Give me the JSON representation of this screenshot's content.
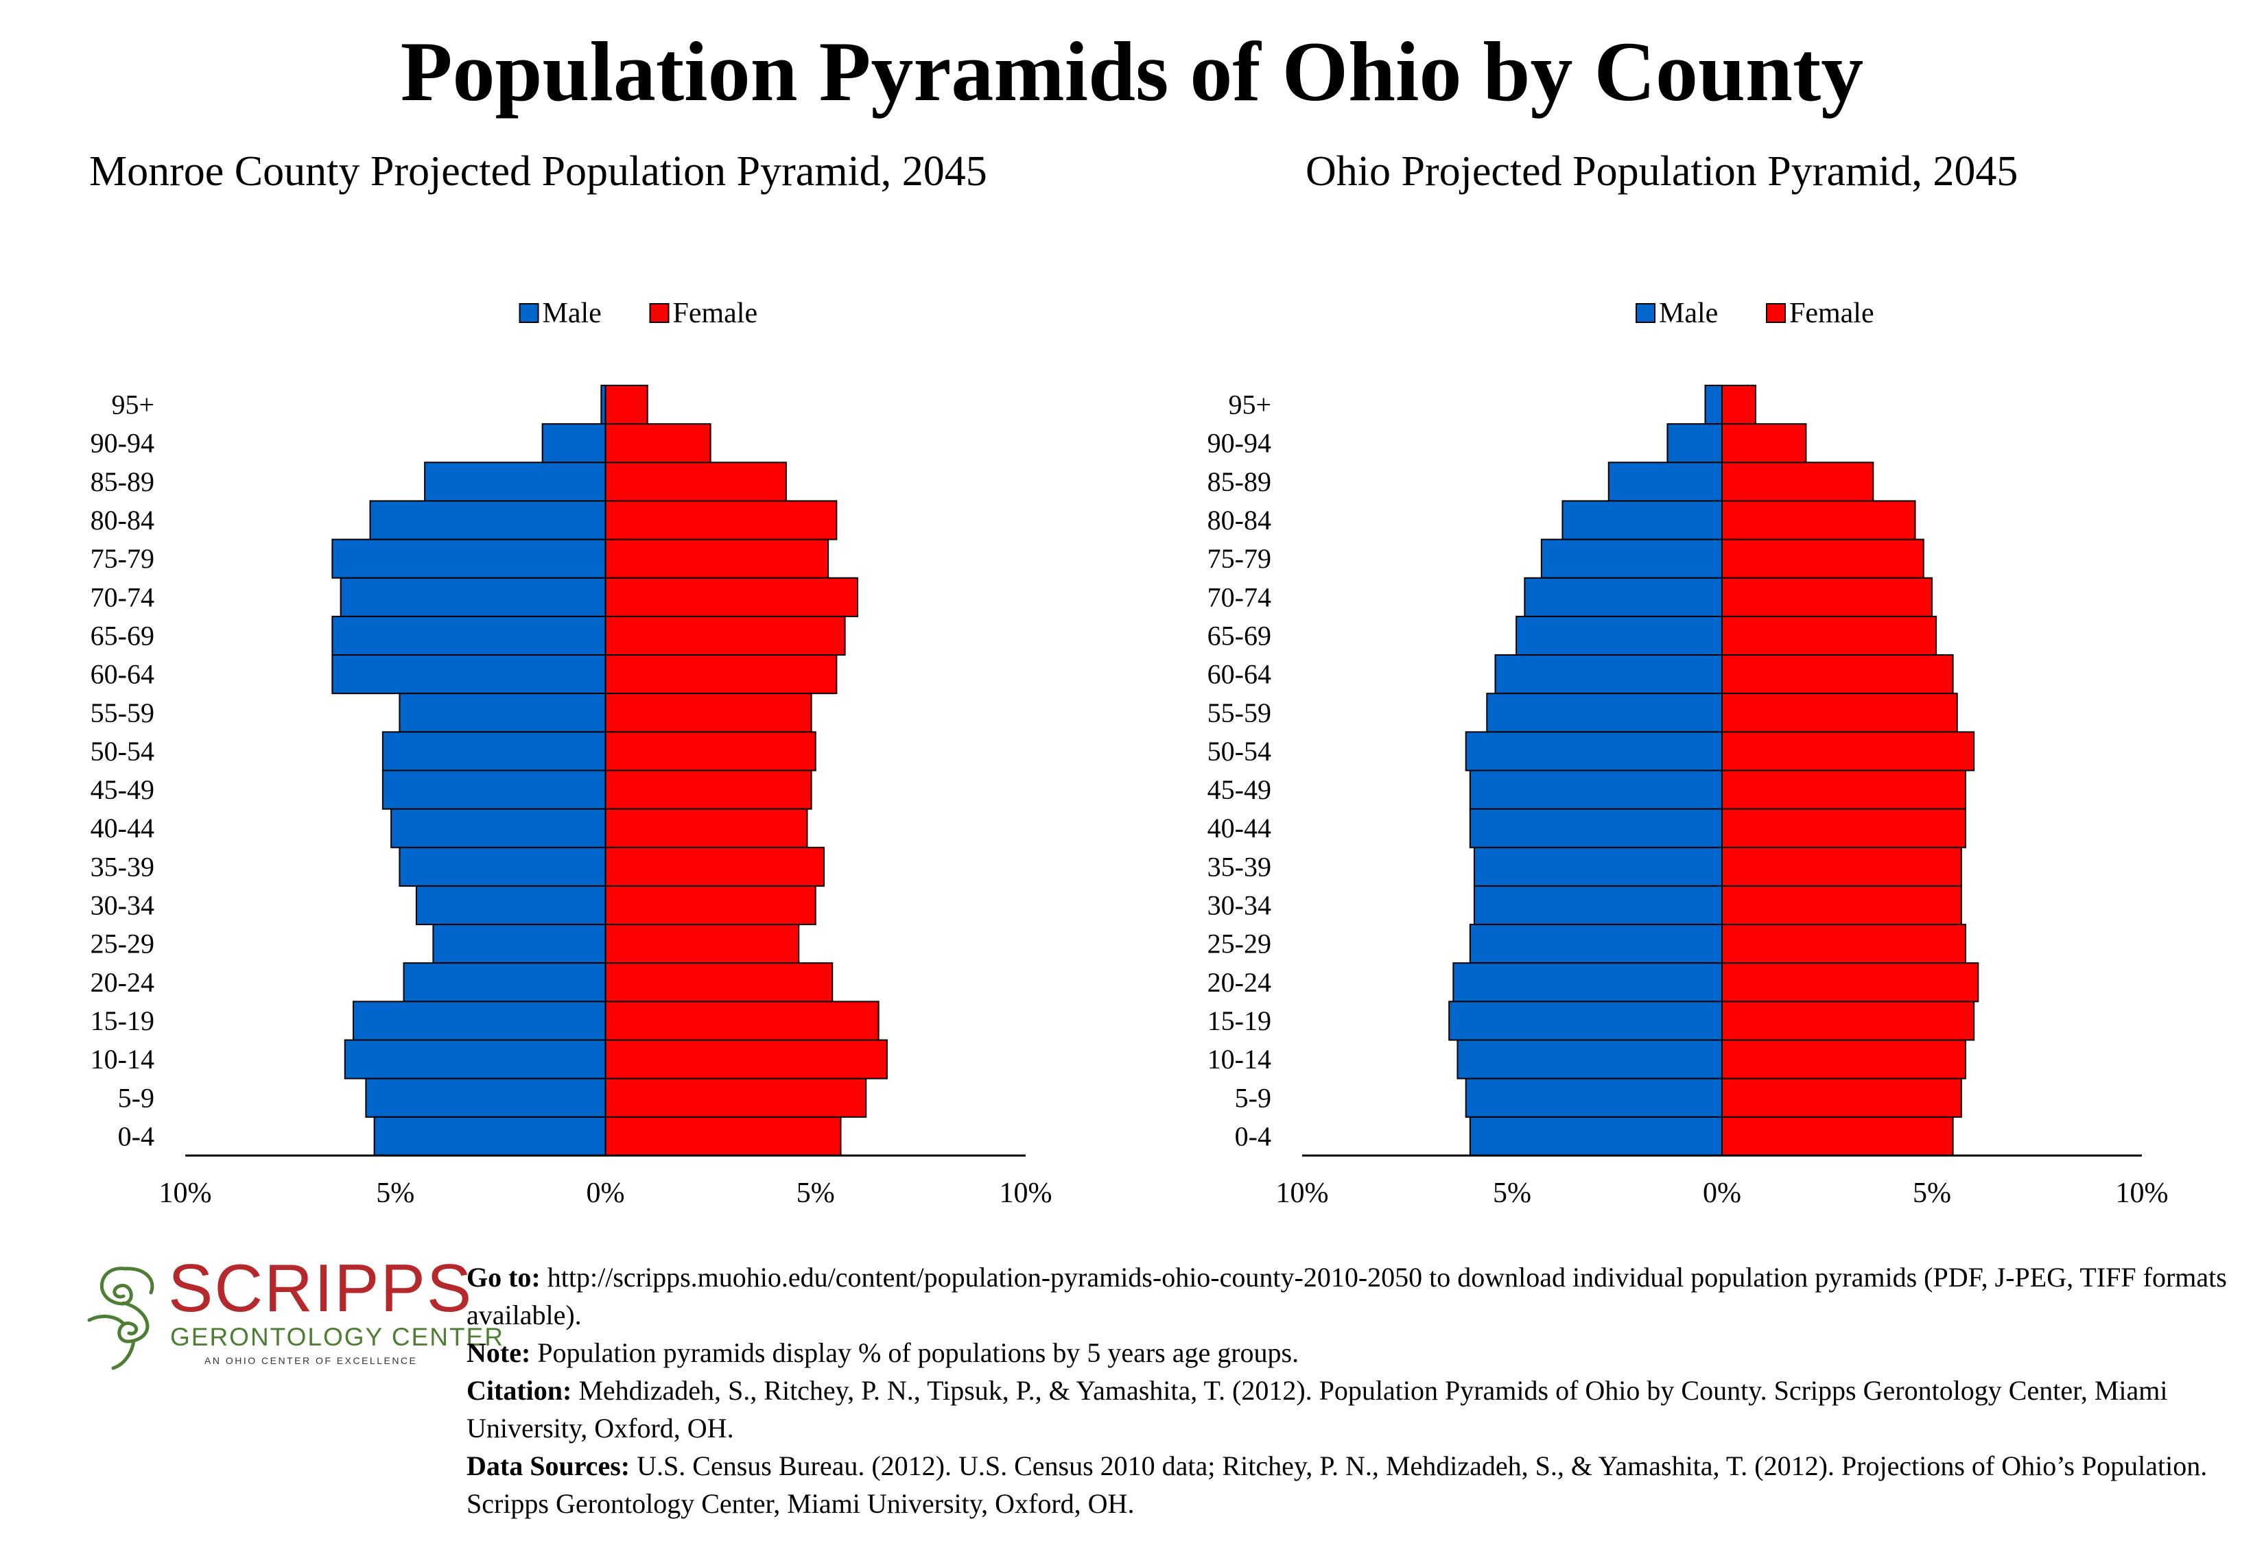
{
  "page": {
    "title": "Population Pyramids of Ohio by County"
  },
  "chart_data": [
    {
      "type": "bar",
      "orientation": "horizontal-pyramid",
      "title": "Monroe County Projected Population Pyramid, 2045",
      "categories": [
        "95+",
        "90-94",
        "85-89",
        "80-84",
        "75-79",
        "70-74",
        "65-69",
        "60-64",
        "55-59",
        "50-54",
        "45-49",
        "40-44",
        "35-39",
        "30-34",
        "25-29",
        "20-24",
        "15-19",
        "10-14",
        "5-9",
        "0-4"
      ],
      "series": [
        {
          "name": "Male",
          "color": "#0066cc",
          "values": [
            0.1,
            1.5,
            4.3,
            5.6,
            6.5,
            6.3,
            6.5,
            6.5,
            4.9,
            5.3,
            5.3,
            5.1,
            4.9,
            4.5,
            4.1,
            4.8,
            6.0,
            6.2,
            5.7,
            5.5
          ]
        },
        {
          "name": "Female",
          "color": "#ff0000",
          "values": [
            1.0,
            2.5,
            4.3,
            5.5,
            5.3,
            6.0,
            5.7,
            5.5,
            4.9,
            5.0,
            4.9,
            4.8,
            5.2,
            5.0,
            4.6,
            5.4,
            6.5,
            6.7,
            6.2,
            5.6
          ]
        }
      ],
      "xlim": [
        -10,
        10
      ],
      "xticks": [
        "10%",
        "5%",
        "0%",
        "5%",
        "10%"
      ],
      "legend_position": "top-center"
    },
    {
      "type": "bar",
      "orientation": "horizontal-pyramid",
      "title": "Ohio Projected Population Pyramid, 2045",
      "categories": [
        "95+",
        "90-94",
        "85-89",
        "80-84",
        "75-79",
        "70-74",
        "65-69",
        "60-64",
        "55-59",
        "50-54",
        "45-49",
        "40-44",
        "35-39",
        "30-34",
        "25-29",
        "20-24",
        "15-19",
        "10-14",
        "5-9",
        "0-4"
      ],
      "series": [
        {
          "name": "Male",
          "color": "#0066cc",
          "values": [
            0.4,
            1.3,
            2.7,
            3.8,
            4.3,
            4.7,
            4.9,
            5.4,
            5.6,
            6.1,
            6.0,
            6.0,
            5.9,
            5.9,
            6.0,
            6.4,
            6.5,
            6.3,
            6.1,
            6.0
          ]
        },
        {
          "name": "Female",
          "color": "#ff0000",
          "values": [
            0.8,
            2.0,
            3.6,
            4.6,
            4.8,
            5.0,
            5.1,
            5.5,
            5.6,
            6.0,
            5.8,
            5.8,
            5.7,
            5.7,
            5.8,
            6.1,
            6.0,
            5.8,
            5.7,
            5.5
          ]
        }
      ],
      "xlim": [
        -10,
        10
      ],
      "xticks": [
        "10%",
        "5%",
        "0%",
        "5%",
        "10%"
      ],
      "legend_position": "top-center"
    }
  ],
  "footer": {
    "logo": {
      "icon": "scripps-spiral-icon",
      "name": "SCRIPPS",
      "subtitle": "GERONTOLOGY CENTER",
      "tagline": "AN OHIO CENTER OF EXCELLENCE",
      "name_color": "#b5282c",
      "accent_color": "#4e7d34"
    },
    "goto_label": "Go to:",
    "goto_text": "http://scripps.muohio.edu/content/population-pyramids-ohio-county-2010-2050 to download individual population pyramids (PDF, J-PEG, TIFF formats available).",
    "note_label": "Note:",
    "note_text": "Population pyramids display % of populations by 5 years age groups.",
    "citation_label": "Citation:",
    "citation_text": "Mehdizadeh, S., Ritchey, P. N., Tipsuk, P., & Yamashita, T. (2012). Population Pyramids of Ohio by County. Scripps Gerontology Center, Miami University, Oxford, OH.",
    "sources_label": "Data Sources:",
    "sources_text": "U.S. Census Bureau. (2012). U.S. Census 2010 data; Ritchey, P. N., Mehdizadeh, S., & Yamashita, T. (2012). Projections of Ohio’s Population. Scripps Gerontology Center, Miami University, Oxford, OH."
  }
}
